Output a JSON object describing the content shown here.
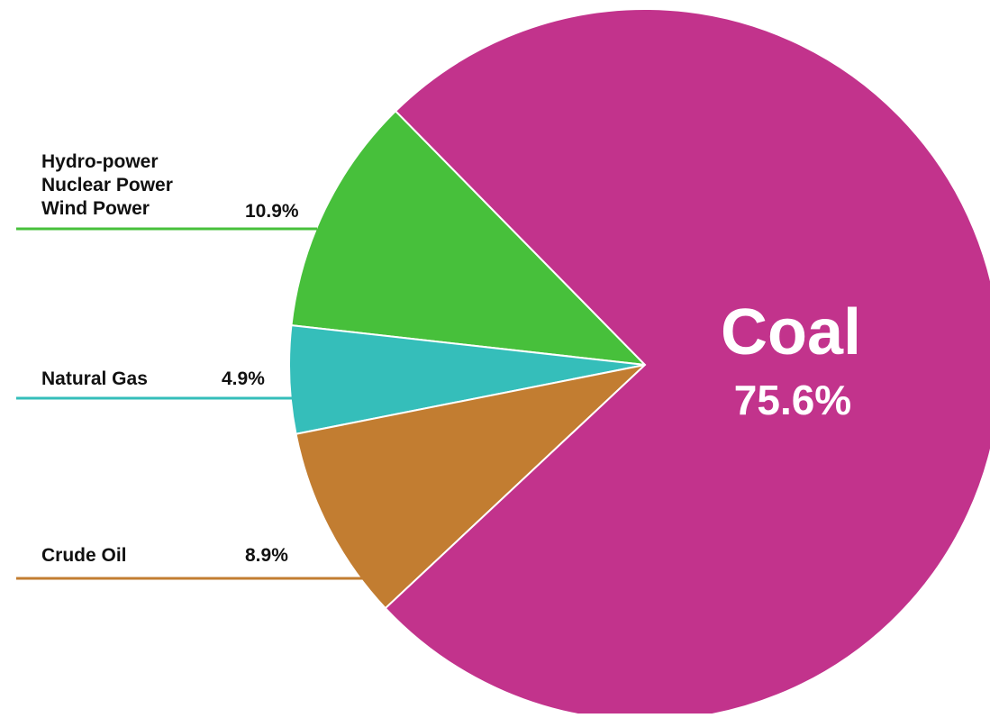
{
  "chart_data": {
    "type": "pie",
    "title": "",
    "slices": [
      {
        "name": "Coal",
        "label_lines": [
          "Coal"
        ],
        "value": 75.6,
        "value_label": "75.6%",
        "color": "#c2338c"
      },
      {
        "name": "Hydro-power Nuclear Power Wind Power",
        "label_lines": [
          "Hydro-power",
          "Nuclear Power",
          "Wind Power"
        ],
        "value": 10.9,
        "value_label": "10.9%",
        "color": "#47c03b"
      },
      {
        "name": "Natural Gas",
        "label_lines": [
          "Natural Gas"
        ],
        "value": 4.9,
        "value_label": "4.9%",
        "color": "#35beba"
      },
      {
        "name": "Crude Oil",
        "label_lines": [
          "Crude Oil"
        ],
        "value": 8.9,
        "value_label": "8.9%",
        "color": "#c27d31"
      }
    ]
  }
}
